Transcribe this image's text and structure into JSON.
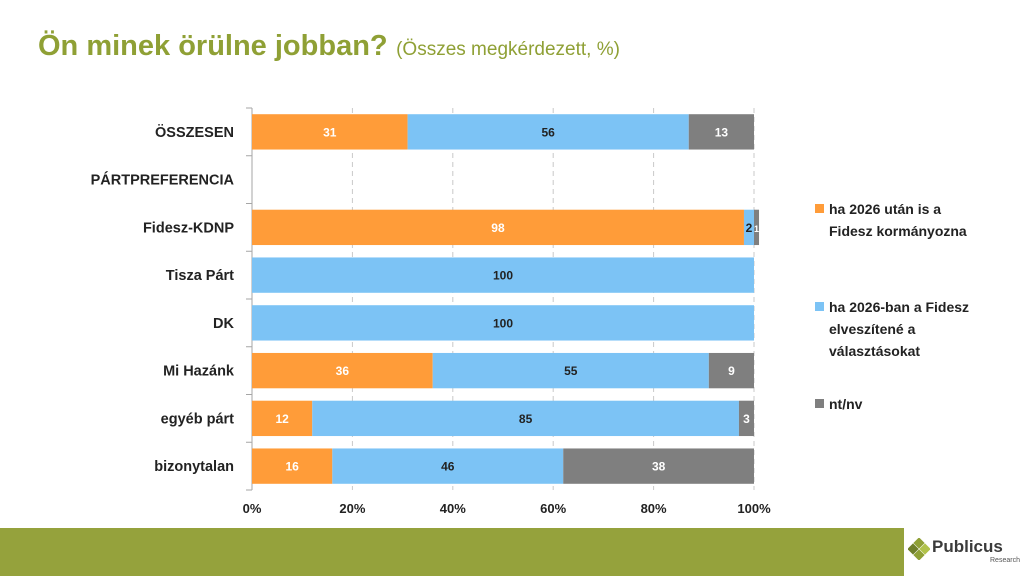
{
  "title": {
    "main": "Ön minek örülne jobban?",
    "sub": "(Összes megkérdezett, %)"
  },
  "brand": {
    "name": "Publicus",
    "sub": "Research",
    "green": "#95a23c"
  },
  "chart_data": {
    "type": "bar",
    "orientation": "horizontal",
    "stacked": true,
    "categories": [
      "ÖSSZESEN",
      "PÁRTPREFERENCIA",
      "Fidesz-KDNP",
      "Tisza Párt",
      "DK",
      "Mi Hazánk",
      "egyéb párt",
      "bizonytalan"
    ],
    "series": [
      {
        "name": "ha 2026 után is a Fidesz kormányozna",
        "color": "#ff9c39",
        "label_color": "#ffffff",
        "values": [
          31,
          null,
          98,
          0,
          0,
          36,
          12,
          16
        ]
      },
      {
        "name": "ha 2026-ban a Fidesz elveszítené a választásokat",
        "color": "#7cc3f5",
        "label_color": "#222222",
        "values": [
          56,
          null,
          2,
          100,
          100,
          55,
          85,
          46
        ]
      },
      {
        "name": "nt/nv",
        "color": "#7f7f7f",
        "label_color": "#ffffff",
        "values": [
          13,
          null,
          1,
          0,
          0,
          9,
          3,
          38
        ]
      }
    ],
    "xlim": [
      0,
      100
    ],
    "xticks": [
      "0%",
      "20%",
      "40%",
      "60%",
      "80%",
      "100%"
    ],
    "grid": true,
    "legend_position": "right"
  }
}
